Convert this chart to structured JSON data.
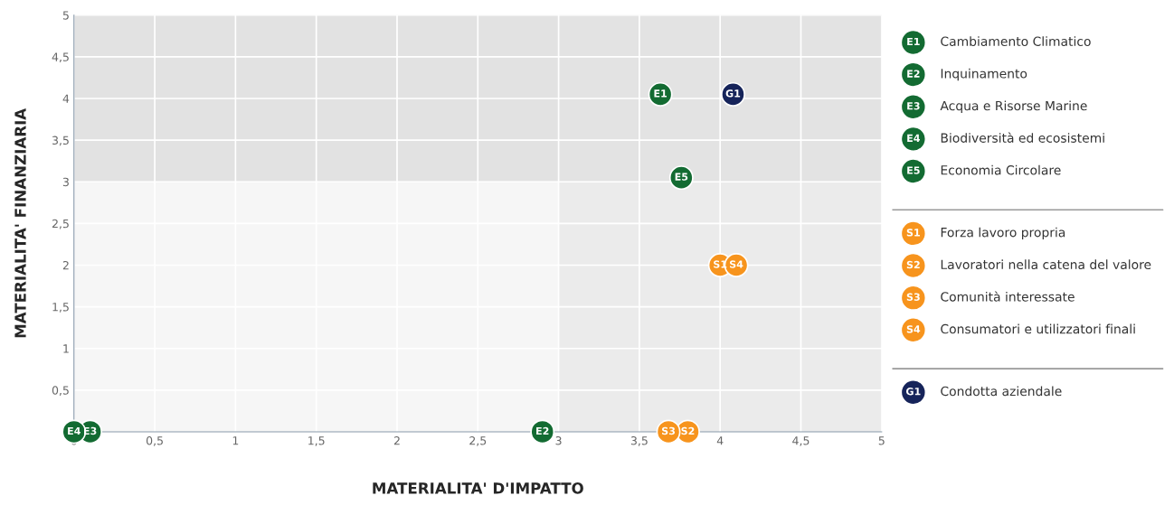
{
  "chart_data": {
    "type": "scatter",
    "xlabel": "MATERIALITA' D'IMPATTO",
    "ylabel": "MATERIALITA' FINANZIARIA",
    "xlim": [
      0,
      5
    ],
    "ylim": [
      0,
      5
    ],
    "xticks": [
      0,
      {
        "value": 0.5,
        "label": "0,5"
      },
      1,
      {
        "value": 1.5,
        "label": "1,5"
      },
      2,
      {
        "value": 2.5,
        "label": "2,5"
      },
      3,
      {
        "value": 3.5,
        "label": "3,5"
      },
      4,
      {
        "value": 4.5,
        "label": "4,5"
      },
      5
    ],
    "yticks": [
      {
        "value": 0.5,
        "label": "0,5"
      },
      1,
      {
        "value": 1.5,
        "label": "1,5"
      },
      2,
      {
        "value": 2.5,
        "label": "2,5"
      },
      3,
      {
        "value": 3.5,
        "label": "3,5"
      },
      4,
      {
        "value": 4.5,
        "label": "4,5"
      },
      5
    ],
    "grid": true,
    "legend": "right",
    "marker": "circle",
    "bands": [
      {
        "axis": "y",
        "from": 3,
        "to": 5,
        "color": "#d6d6d6"
      },
      {
        "axis": "x",
        "from": 3,
        "to": 5,
        "color": "#e4e4e4"
      }
    ],
    "series": [
      {
        "name": "Cambiamento Climatico",
        "color": "#136b32",
        "x": [
          3.63
        ],
        "values": [
          4.05
        ]
      },
      {
        "name": "Inquinamento",
        "color": "#136b32",
        "x": [
          2.9
        ],
        "values": [
          0
        ]
      },
      {
        "name": "Acqua e Risorse Marine",
        "color": "#136b32",
        "x": [
          0.1
        ],
        "values": [
          0
        ]
      },
      {
        "name": "Biodiversità ed ecosistemi",
        "color": "#136b32",
        "x": [
          0
        ],
        "values": [
          0
        ]
      },
      {
        "name": "Economia Circolare",
        "color": "#136b32",
        "x": [
          3.76
        ],
        "values": [
          3.05
        ]
      },
      {
        "name": "Forza lavoro propria",
        "color": "#f7941d",
        "x": [
          4.0
        ],
        "values": [
          2.0
        ]
      },
      {
        "name": "Lavoratori nella catena del valore",
        "color": "#f7941d",
        "x": [
          3.8
        ],
        "values": [
          0
        ]
      },
      {
        "name": "Comunità interessate",
        "color": "#f7941d",
        "x": [
          3.68
        ],
        "values": [
          0
        ]
      },
      {
        "name": "Consumatori e utilizzatori finali",
        "color": "#f7941d",
        "x": [
          4.1
        ],
        "values": [
          2.0
        ]
      },
      {
        "name": "Condotta aziendale",
        "color": "#16245a",
        "x": [
          4.08
        ],
        "values": [
          4.05
        ]
      }
    ],
    "annotations": [
      {
        "text": "E1",
        "x": 3.63,
        "y": 4.05
      },
      {
        "text": "E2",
        "x": 2.9,
        "y": 0
      },
      {
        "text": "E3",
        "x": 0.1,
        "y": 0
      },
      {
        "text": "E4",
        "x": 0,
        "y": 0
      },
      {
        "text": "E5",
        "x": 3.76,
        "y": 3.05
      },
      {
        "text": "S1",
        "x": 4.0,
        "y": 2.0
      },
      {
        "text": "S2",
        "x": 3.8,
        "y": 0
      },
      {
        "text": "S3",
        "x": 3.68,
        "y": 0
      },
      {
        "text": "S4",
        "x": 4.1,
        "y": 2.0
      },
      {
        "text": "G1",
        "x": 4.08,
        "y": 4.05
      }
    ]
  }
}
